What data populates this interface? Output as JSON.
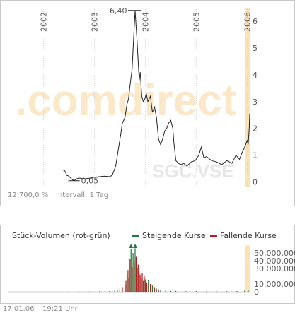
{
  "chart_data": [
    {
      "type": "line",
      "symbol": "SGC.VSE",
      "watermark": ".comdirect",
      "x_ticks": [
        "2002",
        "2003",
        "2004",
        "2005",
        "2006"
      ],
      "y_ticks": [
        "0",
        "1",
        "2",
        "3",
        "4",
        "5",
        "6"
      ],
      "ylim": [
        -0.3,
        6.5
      ],
      "annotations": {
        "high": "6,40",
        "low": "0,05"
      },
      "footer": {
        "performance": "12.700,0 %",
        "interval": "Intervall: 1 Tag"
      },
      "points": [
        [
          2002.38,
          0.45
        ],
        [
          2002.42,
          0.42
        ],
        [
          2002.46,
          0.25
        ],
        [
          2002.5,
          0.22
        ],
        [
          2002.55,
          0.12
        ],
        [
          2002.6,
          0.05
        ],
        [
          2002.65,
          0.12
        ],
        [
          2002.7,
          0.15
        ],
        [
          2002.8,
          0.12
        ],
        [
          2002.9,
          0.14
        ],
        [
          2003.0,
          0.18
        ],
        [
          2003.1,
          0.2
        ],
        [
          2003.2,
          0.22
        ],
        [
          2003.3,
          0.2
        ],
        [
          2003.35,
          0.25
        ],
        [
          2003.42,
          0.6
        ],
        [
          2003.47,
          1.2
        ],
        [
          2003.52,
          1.8
        ],
        [
          2003.55,
          2.2
        ],
        [
          2003.6,
          2.4
        ],
        [
          2003.64,
          2.9
        ],
        [
          2003.67,
          3.1
        ],
        [
          2003.7,
          3.6
        ],
        [
          2003.74,
          4.2
        ],
        [
          2003.77,
          5.3
        ],
        [
          2003.8,
          6.4
        ],
        [
          2003.82,
          5.8
        ],
        [
          2003.84,
          5.2
        ],
        [
          2003.86,
          4.5
        ],
        [
          2003.88,
          3.8
        ],
        [
          2003.9,
          4.1
        ],
        [
          2003.93,
          3.2
        ],
        [
          2003.96,
          3.0
        ],
        [
          2003.99,
          3.1
        ],
        [
          2004.02,
          3.3
        ],
        [
          2004.05,
          3.0
        ],
        [
          2004.1,
          3.2
        ],
        [
          2004.14,
          2.6
        ],
        [
          2004.18,
          2.8
        ],
        [
          2004.22,
          2.4
        ],
        [
          2004.26,
          1.6
        ],
        [
          2004.3,
          1.4
        ],
        [
          2004.34,
          1.6
        ],
        [
          2004.38,
          1.9
        ],
        [
          2004.42,
          2.0
        ],
        [
          2004.46,
          2.2
        ],
        [
          2004.5,
          2.3
        ],
        [
          2004.54,
          2.0
        ],
        [
          2004.56,
          1.5
        ],
        [
          2004.6,
          0.8
        ],
        [
          2004.65,
          0.7
        ],
        [
          2004.7,
          0.65
        ],
        [
          2004.75,
          0.7
        ],
        [
          2004.82,
          0.6
        ],
        [
          2004.9,
          0.75
        ],
        [
          2004.98,
          0.8
        ],
        [
          2005.05,
          1.0
        ],
        [
          2005.1,
          1.3
        ],
        [
          2005.15,
          0.9
        ],
        [
          2005.2,
          0.95
        ],
        [
          2005.3,
          0.8
        ],
        [
          2005.4,
          0.75
        ],
        [
          2005.5,
          0.65
        ],
        [
          2005.6,
          0.8
        ],
        [
          2005.7,
          0.7
        ],
        [
          2005.78,
          1.0
        ],
        [
          2005.85,
          0.85
        ],
        [
          2005.9,
          1.1
        ],
        [
          2005.95,
          1.3
        ],
        [
          2006.0,
          1.55
        ],
        [
          2006.02,
          1.4
        ],
        [
          2006.04,
          2.0
        ],
        [
          2006.05,
          2.55
        ]
      ]
    },
    {
      "type": "bar",
      "title": "Stück-Volumen (rot-grün)",
      "legend": {
        "rising": "Steigende Kurse",
        "falling": "Fallende Kurse"
      },
      "y_ticks": [
        "0",
        "10.000.000",
        "30.000.000",
        "40.000.000",
        "50.000.000"
      ],
      "ylim": [
        0,
        60000000
      ],
      "colors": {
        "rising": "#1f7a3a",
        "falling": "#b21f1f"
      },
      "footer": {
        "date": "17.01.06",
        "time": "19:21 Uhr"
      },
      "bars": [
        [
          2002.5,
          500000,
          "r"
        ],
        [
          2002.7,
          400000,
          "g"
        ],
        [
          2002.9,
          300000,
          "r"
        ],
        [
          2003.1,
          600000,
          "g"
        ],
        [
          2003.3,
          900000,
          "r"
        ],
        [
          2003.4,
          1500000,
          "g"
        ],
        [
          2003.45,
          2500000,
          "r"
        ],
        [
          2003.5,
          4000000,
          "g"
        ],
        [
          2003.55,
          6000000,
          "r"
        ],
        [
          2003.6,
          9000000,
          "g"
        ],
        [
          2003.62,
          14000000,
          "r"
        ],
        [
          2003.64,
          22000000,
          "g"
        ],
        [
          2003.66,
          28000000,
          "r"
        ],
        [
          2003.68,
          18000000,
          "g"
        ],
        [
          2003.7,
          42000000,
          "r"
        ],
        [
          2003.72,
          55000000,
          "g"
        ],
        [
          2003.74,
          32000000,
          "r"
        ],
        [
          2003.76,
          50000000,
          "g"
        ],
        [
          2003.78,
          38000000,
          "r"
        ],
        [
          2003.8,
          56000000,
          "g"
        ],
        [
          2003.82,
          45000000,
          "r"
        ],
        [
          2003.84,
          30000000,
          "g"
        ],
        [
          2003.86,
          35000000,
          "r"
        ],
        [
          2003.88,
          26000000,
          "g"
        ],
        [
          2003.9,
          22000000,
          "r"
        ],
        [
          2003.92,
          18000000,
          "g"
        ],
        [
          2003.94,
          24000000,
          "r"
        ],
        [
          2003.96,
          14000000,
          "g"
        ],
        [
          2003.98,
          20000000,
          "r"
        ],
        [
          2004.0,
          16000000,
          "g"
        ],
        [
          2004.03,
          12000000,
          "r"
        ],
        [
          2004.06,
          15000000,
          "g"
        ],
        [
          2004.1,
          10000000,
          "r"
        ],
        [
          2004.14,
          8000000,
          "g"
        ],
        [
          2004.18,
          6000000,
          "r"
        ],
        [
          2004.22,
          4000000,
          "g"
        ],
        [
          2004.26,
          3000000,
          "r"
        ],
        [
          2004.3,
          2000000,
          "g"
        ],
        [
          2004.4,
          1500000,
          "r"
        ],
        [
          2004.5,
          1200000,
          "g"
        ],
        [
          2004.6,
          900000,
          "r"
        ],
        [
          2004.8,
          700000,
          "g"
        ],
        [
          2005.0,
          800000,
          "r"
        ],
        [
          2005.2,
          600000,
          "g"
        ],
        [
          2005.4,
          500000,
          "r"
        ],
        [
          2005.6,
          700000,
          "g"
        ],
        [
          2005.8,
          900000,
          "r"
        ],
        [
          2005.95,
          1500000,
          "g"
        ],
        [
          2006.02,
          2500000,
          "g"
        ]
      ]
    }
  ]
}
